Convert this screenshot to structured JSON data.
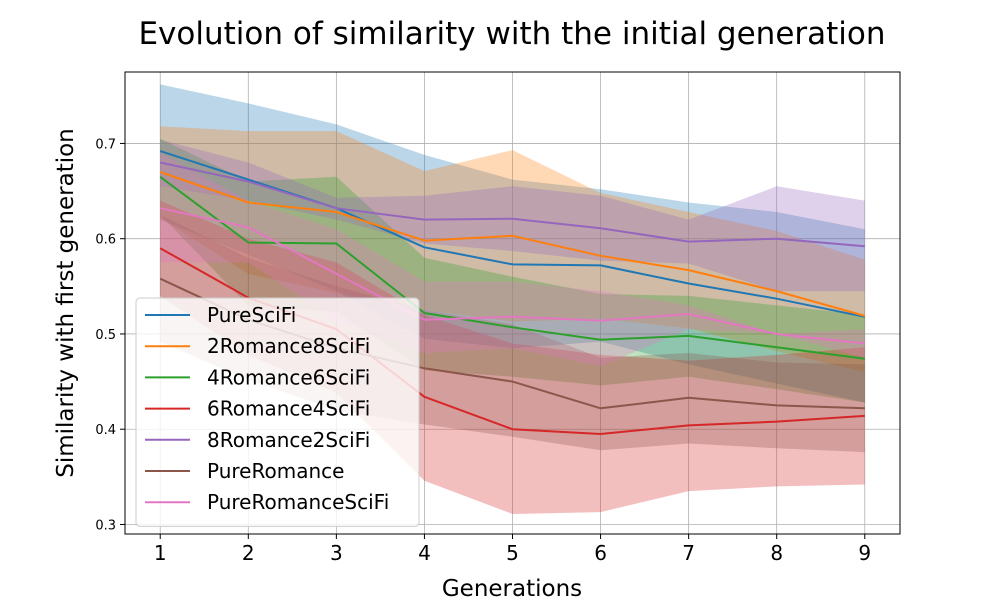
{
  "chart_data": {
    "type": "line",
    "title": "Evolution of similarity with the initial generation",
    "xlabel": "Generations",
    "ylabel": "Similarity with first generation",
    "x": [
      1,
      2,
      3,
      4,
      5,
      6,
      7,
      8,
      9
    ],
    "xticks": [
      "1",
      "2",
      "3",
      "4",
      "5",
      "6",
      "7",
      "8",
      "9"
    ],
    "yticks": [
      "0.3",
      "0.4",
      "0.5",
      "0.6",
      "0.7"
    ],
    "xlim": [
      0.6,
      9.4
    ],
    "ylim": [
      0.29,
      0.775
    ],
    "grid": true,
    "legend_position": "lower-left",
    "series": [
      {
        "name": "PureSciFi",
        "color": "#1f77b4",
        "values": [
          0.692,
          0.662,
          0.632,
          0.591,
          0.573,
          0.572,
          0.553,
          0.537,
          0.518
        ],
        "upper": [
          0.762,
          0.742,
          0.72,
          0.688,
          0.662,
          0.652,
          0.638,
          0.628,
          0.61
        ],
        "lower": [
          0.62,
          0.583,
          0.545,
          0.495,
          0.485,
          0.492,
          0.468,
          0.448,
          0.428
        ]
      },
      {
        "name": "2Romance8SciFi",
        "color": "#ff7f0e",
        "values": [
          0.67,
          0.638,
          0.628,
          0.598,
          0.603,
          0.582,
          0.567,
          0.545,
          0.519
        ],
        "upper": [
          0.718,
          0.713,
          0.713,
          0.671,
          0.693,
          0.648,
          0.628,
          0.608,
          0.578
        ],
        "lower": [
          0.622,
          0.563,
          0.543,
          0.525,
          0.513,
          0.516,
          0.506,
          0.482,
          0.46
        ]
      },
      {
        "name": "4Romance6SciFi",
        "color": "#2ca02c",
        "values": [
          0.665,
          0.596,
          0.595,
          0.522,
          0.507,
          0.494,
          0.498,
          0.486,
          0.474
        ],
        "upper": [
          0.705,
          0.66,
          0.665,
          0.58,
          0.56,
          0.542,
          0.54,
          0.53,
          0.52
        ],
        "lower": [
          0.625,
          0.53,
          0.523,
          0.462,
          0.455,
          0.446,
          0.455,
          0.442,
          0.428
        ]
      },
      {
        "name": "6Romance4SciFi",
        "color": "#d62728",
        "values": [
          0.59,
          0.538,
          0.505,
          0.434,
          0.4,
          0.395,
          0.404,
          0.408,
          0.414
        ],
        "upper": [
          0.64,
          0.6,
          0.575,
          0.52,
          0.49,
          0.478,
          0.472,
          0.478,
          0.486
        ],
        "lower": [
          0.54,
          0.478,
          0.438,
          0.346,
          0.311,
          0.313,
          0.335,
          0.34,
          0.342
        ]
      },
      {
        "name": "8Romance2SciFi",
        "color": "#9467bd",
        "values": [
          0.68,
          0.66,
          0.632,
          0.62,
          0.621,
          0.611,
          0.597,
          0.6,
          0.592
        ],
        "upper": [
          0.704,
          0.68,
          0.643,
          0.645,
          0.655,
          0.645,
          0.62,
          0.655,
          0.64
        ],
        "lower": [
          0.655,
          0.64,
          0.62,
          0.595,
          0.587,
          0.577,
          0.574,
          0.545,
          0.545
        ]
      },
      {
        "name": "PureRomance",
        "color": "#8c564b",
        "values": [
          0.558,
          0.515,
          0.485,
          0.464,
          0.45,
          0.422,
          0.433,
          0.425,
          0.422
        ],
        "upper": [
          0.625,
          0.58,
          0.55,
          0.525,
          0.51,
          0.475,
          0.48,
          0.47,
          0.468
        ],
        "lower": [
          0.492,
          0.452,
          0.42,
          0.405,
          0.392,
          0.378,
          0.385,
          0.38,
          0.376
        ]
      },
      {
        "name": "PureRomanceSciFi",
        "color": "#e377c2",
        "values": [
          0.632,
          0.612,
          0.563,
          0.515,
          0.518,
          0.514,
          0.521,
          0.5,
          0.49
        ],
        "upper": [
          0.69,
          0.64,
          0.61,
          0.555,
          0.555,
          0.545,
          0.53,
          0.5,
          0.505
        ],
        "lower": [
          0.575,
          0.575,
          0.515,
          0.48,
          0.485,
          0.466,
          0.505,
          0.5,
          0.475
        ]
      }
    ]
  }
}
